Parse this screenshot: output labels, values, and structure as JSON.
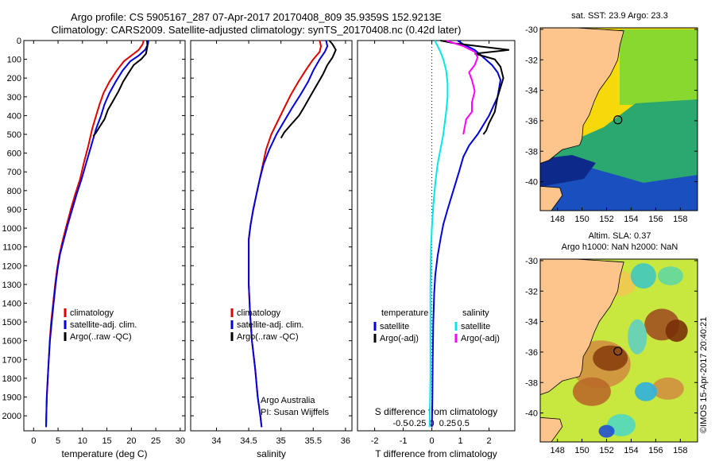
{
  "header": {
    "line1": "Argo profile: CS 5905167_287 07-Apr-2017 20170408_809 35.9359S 152.9213E",
    "line2": "Climatology: CARS2009. Satellite-adjusted climatology: synTS_20170408.nc (0.42d later)"
  },
  "chart_data": [
    {
      "type": "line",
      "id": "temperature",
      "xlabel": "temperature (deg C)",
      "ylabel": "",
      "xlim": [
        -2,
        31
      ],
      "ylim": [
        2080,
        0
      ],
      "x_ticks": [
        0,
        5,
        10,
        15,
        20,
        25,
        30
      ],
      "y_ticks": [
        0,
        100,
        200,
        300,
        400,
        500,
        600,
        700,
        800,
        900,
        1000,
        1100,
        1200,
        1300,
        1400,
        1500,
        1600,
        1700,
        1800,
        1900,
        2000
      ],
      "legend": [
        "climatology",
        "satellite-adj. clim.",
        "Argo(..raw -QC)"
      ],
      "series": [
        {
          "name": "climatology",
          "color": "#e00000",
          "points": [
            [
              22.5,
              0
            ],
            [
              22.3,
              20
            ],
            [
              21.5,
              50
            ],
            [
              20,
              80
            ],
            [
              18.5,
              110
            ],
            [
              17,
              160
            ],
            [
              15.5,
              220
            ],
            [
              14.3,
              280
            ],
            [
              13.5,
              340
            ],
            [
              12.8,
              400
            ],
            [
              12,
              470
            ],
            [
              11.2,
              560
            ],
            [
              10.3,
              650
            ],
            [
              9.5,
              740
            ],
            [
              8.5,
              820
            ],
            [
              7.6,
              900
            ],
            [
              6.8,
              980
            ],
            [
              6,
              1060
            ],
            [
              5.3,
              1140
            ],
            [
              4.8,
              1220
            ],
            [
              4.4,
              1300
            ],
            [
              4,
              1400
            ],
            [
              3.6,
              1500
            ],
            [
              3.3,
              1600
            ],
            [
              3.1,
              1700
            ],
            [
              2.9,
              1800
            ],
            [
              2.7,
              1900
            ],
            [
              2.6,
              2000
            ],
            [
              2.55,
              2060
            ]
          ]
        },
        {
          "name": "satellite-adj. clim.",
          "color": "#0000dd",
          "points": [
            [
              23.5,
              0
            ],
            [
              23.4,
              20
            ],
            [
              22.8,
              50
            ],
            [
              21.5,
              80
            ],
            [
              19.8,
              110
            ],
            [
              18.2,
              160
            ],
            [
              16.8,
              220
            ],
            [
              15.5,
              280
            ],
            [
              14.5,
              340
            ],
            [
              13.8,
              400
            ],
            [
              12.8,
              470
            ],
            [
              11.8,
              560
            ],
            [
              10.8,
              650
            ],
            [
              9.8,
              740
            ],
            [
              8.8,
              820
            ],
            [
              7.9,
              900
            ],
            [
              7,
              980
            ],
            [
              6.2,
              1060
            ],
            [
              5.4,
              1140
            ],
            [
              4.9,
              1220
            ],
            [
              4.5,
              1300
            ],
            [
              4.1,
              1400
            ],
            [
              3.7,
              1500
            ],
            [
              3.35,
              1600
            ],
            [
              3.1,
              1700
            ],
            [
              2.9,
              1800
            ],
            [
              2.7,
              1900
            ],
            [
              2.6,
              2000
            ],
            [
              2.55,
              2060
            ]
          ]
        },
        {
          "name": "Argo(..raw -QC)",
          "color": "#000000",
          "points": [
            [
              23.2,
              0
            ],
            [
              23.3,
              30
            ],
            [
              23.0,
              70
            ],
            [
              22.0,
              100
            ],
            [
              20.5,
              130
            ],
            [
              19.5,
              170
            ],
            [
              18.3,
              220
            ],
            [
              17.4,
              270
            ],
            [
              16.3,
              320
            ],
            [
              15.2,
              370
            ],
            [
              14.5,
              420
            ],
            [
              13.5,
              460
            ],
            [
              12.8,
              490
            ],
            [
              12.2,
              510
            ]
          ]
        }
      ]
    },
    {
      "type": "line",
      "id": "salinity",
      "xlabel": "salinity",
      "ylabel": "",
      "xlim": [
        33.6,
        36.1
      ],
      "ylim": [
        2080,
        0
      ],
      "x_ticks": [
        34,
        34.5,
        35,
        35.5,
        36
      ],
      "y_ticks": [
        0,
        100,
        200,
        300,
        400,
        500,
        600,
        700,
        800,
        900,
        1000,
        1100,
        1200,
        1300,
        1400,
        1500,
        1600,
        1700,
        1800,
        1900,
        2000
      ],
      "legend": [
        "climatology",
        "satellite-adj. clim.",
        "Argo(..raw -QC)"
      ],
      "annotation": [
        "Argo Australia",
        "PI: Susan Wijffels"
      ],
      "series": [
        {
          "name": "climatology",
          "color": "#e00000",
          "points": [
            [
              35.6,
              0
            ],
            [
              35.62,
              30
            ],
            [
              35.6,
              60
            ],
            [
              35.5,
              100
            ],
            [
              35.38,
              160
            ],
            [
              35.27,
              220
            ],
            [
              35.15,
              290
            ],
            [
              35.05,
              360
            ],
            [
              34.95,
              430
            ],
            [
              34.85,
              500
            ],
            [
              34.77,
              580
            ],
            [
              34.72,
              660
            ],
            [
              34.67,
              740
            ],
            [
              34.62,
              820
            ],
            [
              34.57,
              900
            ],
            [
              34.53,
              980
            ],
            [
              34.5,
              1060
            ],
            [
              34.5,
              1140
            ],
            [
              34.5,
              1300
            ],
            [
              34.52,
              1450
            ],
            [
              34.55,
              1600
            ],
            [
              34.6,
              1750
            ],
            [
              34.64,
              1900
            ],
            [
              34.68,
              2000
            ],
            [
              34.7,
              2060
            ]
          ]
        },
        {
          "name": "satellite-adj. clim.",
          "color": "#0000dd",
          "points": [
            [
              35.7,
              0
            ],
            [
              35.72,
              30
            ],
            [
              35.68,
              60
            ],
            [
              35.6,
              100
            ],
            [
              35.5,
              160
            ],
            [
              35.42,
              220
            ],
            [
              35.3,
              290
            ],
            [
              35.17,
              360
            ],
            [
              35.05,
              430
            ],
            [
              34.93,
              500
            ],
            [
              34.82,
              580
            ],
            [
              34.73,
              660
            ],
            [
              34.67,
              740
            ],
            [
              34.62,
              820
            ],
            [
              34.57,
              900
            ],
            [
              34.53,
              980
            ],
            [
              34.5,
              1060
            ],
            [
              34.5,
              1140
            ],
            [
              34.5,
              1300
            ],
            [
              34.52,
              1450
            ],
            [
              34.55,
              1600
            ],
            [
              34.6,
              1750
            ],
            [
              34.64,
              1900
            ],
            [
              34.68,
              2000
            ],
            [
              34.7,
              2060
            ]
          ]
        },
        {
          "name": "Argo(..raw -QC)",
          "color": "#000000",
          "points": [
            [
              35.75,
              0
            ],
            [
              35.8,
              20
            ],
            [
              35.85,
              50
            ],
            [
              35.8,
              90
            ],
            [
              35.72,
              130
            ],
            [
              35.65,
              180
            ],
            [
              35.55,
              240
            ],
            [
              35.45,
              300
            ],
            [
              35.35,
              360
            ],
            [
              35.28,
              400
            ],
            [
              35.15,
              450
            ],
            [
              35.05,
              490
            ],
            [
              35.0,
              520
            ]
          ]
        }
      ]
    },
    {
      "type": "line",
      "id": "difference",
      "xlabel": "T difference from climatology",
      "xlabel_top": "S difference from climatology",
      "ylabel": "",
      "xlim": [
        -2.6,
        2.9
      ],
      "ylim": [
        2080,
        0
      ],
      "x_ticks": [
        -2,
        -1,
        0,
        1,
        2
      ],
      "x_ticks_top": [
        -0.5,
        -0.25,
        0,
        0.25,
        0.5
      ],
      "legend": [
        {
          "group": "temperature",
          "label": "satellite",
          "color": "#0000dd"
        },
        {
          "group": "temperature",
          "label": "Argo(-adj)",
          "color": "#000000"
        },
        {
          "group": "salinity",
          "label": "satellite",
          "color": "#00e8e8"
        },
        {
          "group": "salinity",
          "label": "Argo(-adj)",
          "color": "#ff00ff"
        }
      ],
      "legend_headers": [
        "temperature",
        "salinity"
      ],
      "series": [
        {
          "name": "temperature satellite",
          "color": "#0000dd",
          "points": [
            [
              0.9,
              0
            ],
            [
              1.1,
              20
            ],
            [
              1.5,
              50
            ],
            [
              1.8,
              90
            ],
            [
              2.1,
              130
            ],
            [
              2.3,
              170
            ],
            [
              2.4,
              210
            ],
            [
              2.3,
              300
            ],
            [
              2.0,
              400
            ],
            [
              1.6,
              500
            ],
            [
              1.3,
              560
            ],
            [
              1.1,
              620
            ],
            [
              0.95,
              700
            ],
            [
              0.75,
              800
            ],
            [
              0.55,
              900
            ],
            [
              0.4,
              980
            ],
            [
              0.3,
              1060
            ],
            [
              0.2,
              1150
            ],
            [
              0.12,
              1250
            ],
            [
              0.08,
              1350
            ],
            [
              0.05,
              1500
            ],
            [
              0.03,
              1700
            ],
            [
              0.02,
              1900
            ],
            [
              0.0,
              2060
            ]
          ]
        },
        {
          "name": "temperature Argo(-adj)",
          "color": "#000000",
          "points": [
            [
              0.3,
              0
            ],
            [
              0.8,
              15
            ],
            [
              2.7,
              50
            ],
            [
              1.5,
              70
            ],
            [
              2.2,
              100
            ],
            [
              2.4,
              140
            ],
            [
              2.5,
              200
            ],
            [
              2.3,
              300
            ],
            [
              2.2,
              380
            ],
            [
              2.0,
              440
            ],
            [
              1.9,
              480
            ],
            [
              1.8,
              500
            ]
          ]
        },
        {
          "name": "salinity satellite",
          "color": "#00e8e8",
          "points": [
            [
              0.1,
              0
            ],
            [
              0.2,
              30
            ],
            [
              0.3,
              60
            ],
            [
              0.4,
              100
            ],
            [
              0.5,
              160
            ],
            [
              0.55,
              230
            ],
            [
              0.55,
              300
            ],
            [
              0.5,
              380
            ],
            [
              0.45,
              440
            ],
            [
              0.4,
              500
            ],
            [
              0.3,
              580
            ],
            [
              0.2,
              660
            ],
            [
              0.12,
              760
            ],
            [
              0.05,
              880
            ],
            [
              0.0,
              1000
            ],
            [
              -0.03,
              1100
            ],
            [
              -0.05,
              1300
            ],
            [
              -0.05,
              1600
            ],
            [
              -0.05,
              1800
            ],
            [
              -0.08,
              2060
            ]
          ]
        },
        {
          "name": "salinity Argo(-adj)",
          "color": "#ff00ff",
          "points": [
            [
              0.5,
              0
            ],
            [
              1.1,
              30
            ],
            [
              1.5,
              60
            ],
            [
              1.6,
              90
            ],
            [
              1.5,
              130
            ],
            [
              1.3,
              170
            ],
            [
              1.4,
              210
            ],
            [
              1.5,
              270
            ],
            [
              1.4,
              330
            ],
            [
              1.4,
              380
            ],
            [
              1.2,
              420
            ],
            [
              1.15,
              460
            ],
            [
              1.1,
              500
            ]
          ]
        }
      ]
    }
  ],
  "maps": [
    {
      "id": "sst-map",
      "title": "sat. SST: 23.9 Argo: 23.3",
      "lon_ticks": [
        148,
        150,
        152,
        154,
        156,
        158
      ],
      "lat_ticks": [
        -30,
        -32,
        -34,
        -36,
        -38,
        -40
      ],
      "marker": {
        "lon": 152.92,
        "lat": -35.94
      }
    },
    {
      "id": "sla-map",
      "title_line1": "Altim. SLA: 0.37",
      "title_line2": "Argo h1000: NaN h2000: NaN",
      "lon_ticks": [
        148,
        150,
        152,
        154,
        156,
        158
      ],
      "lat_ticks": [
        -30,
        -32,
        -34,
        -36,
        -38,
        -40
      ],
      "marker": {
        "lon": 152.92,
        "lat": -35.94
      }
    }
  ],
  "credit": "©IMOS 15-Apr-2017 20:40:21",
  "colors": {
    "land": "#fdc48c",
    "climatology": "#e00000",
    "satellite": "#0000dd",
    "argo": "#000000",
    "sal_satellite": "#00e8e8",
    "sal_argo": "#ff00ff"
  }
}
